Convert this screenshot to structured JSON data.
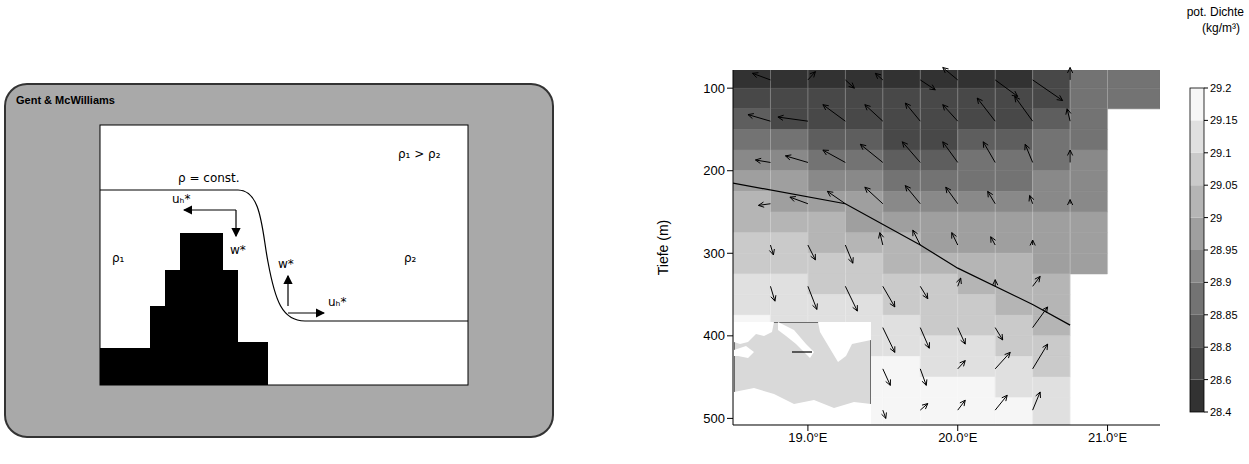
{
  "diagram": {
    "title": "Gent & McWilliams",
    "isopycnal_label": "ρ = const.",
    "density_relation": "ρ₁ > ρ₂",
    "rho_left": "ρ₁",
    "rho_right": "ρ₂",
    "u_label": "uₕ*",
    "w_label": "w*"
  },
  "chart_data": {
    "type": "contour",
    "y_label": "Tiefe (m)",
    "xlim": [
      18.5,
      21.35
    ],
    "xticks": [
      {
        "value": 19,
        "label": "19.0°E"
      },
      {
        "value": 20,
        "label": "20.0°E"
      },
      {
        "value": 21,
        "label": "21.0°E"
      }
    ],
    "ylim": [
      78,
      508
    ],
    "yticks": [
      100,
      200,
      300,
      400,
      500
    ],
    "grid": true,
    "colorbar_title": "pot. Dichte",
    "colorbar_units": "(kg/m³)",
    "colorbar_range": [
      28.4,
      29.2
    ],
    "colorbar_ticks": [
      28.4,
      28.6,
      28.8,
      28.85,
      28.9,
      28.95,
      29,
      29.05,
      29.1,
      29.15,
      29.2
    ],
    "x_edges": [
      18.5,
      18.75,
      19.0,
      19.25,
      19.5,
      19.75,
      20.0,
      20.25,
      20.5,
      20.75,
      21.0,
      21.35
    ],
    "depth_edges": [
      78,
      100,
      125,
      150,
      175,
      200,
      225,
      250,
      275,
      300,
      325,
      350,
      375,
      400,
      425,
      450,
      475,
      508
    ],
    "density": [
      [
        28.55,
        28.5,
        28.5,
        28.5,
        28.5,
        28.5,
        28.5,
        28.5,
        28.6,
        28.85,
        28.85
      ],
      [
        28.75,
        28.7,
        28.65,
        28.6,
        28.6,
        28.6,
        28.65,
        28.7,
        28.75,
        28.85,
        28.85
      ],
      [
        28.82,
        28.78,
        28.75,
        28.72,
        28.7,
        28.7,
        28.72,
        28.75,
        28.8,
        28.87,
        null
      ],
      [
        28.88,
        28.85,
        28.82,
        28.8,
        28.78,
        28.78,
        28.8,
        28.82,
        28.85,
        28.88,
        null
      ],
      [
        28.93,
        28.9,
        28.88,
        28.86,
        28.84,
        28.84,
        28.85,
        28.86,
        28.88,
        28.9,
        null
      ],
      [
        28.97,
        28.95,
        28.93,
        28.91,
        28.89,
        28.88,
        28.88,
        28.89,
        28.9,
        28.92,
        null
      ],
      [
        29.01,
        28.99,
        28.97,
        28.95,
        28.93,
        28.92,
        28.92,
        28.92,
        28.93,
        28.94,
        null
      ],
      [
        29.04,
        29.02,
        29.01,
        28.99,
        28.97,
        28.96,
        28.95,
        28.95,
        28.95,
        28.96,
        null
      ],
      [
        29.07,
        29.05,
        29.04,
        29.02,
        29.01,
        28.99,
        28.98,
        28.97,
        28.97,
        28.97,
        null
      ],
      [
        29.09,
        29.08,
        29.07,
        29.05,
        29.04,
        29.02,
        29.01,
        29.0,
        28.99,
        28.98,
        null
      ],
      [
        29.11,
        29.1,
        29.09,
        29.08,
        29.06,
        29.05,
        29.03,
        29.02,
        29.01,
        null,
        null
      ],
      [
        29.13,
        29.12,
        29.11,
        29.1,
        29.09,
        29.07,
        29.06,
        29.04,
        29.02,
        null,
        null
      ],
      [
        29.15,
        29.14,
        29.13,
        29.12,
        29.11,
        29.09,
        29.08,
        29.06,
        29.04,
        null,
        null
      ],
      [
        29.16,
        29.16,
        29.15,
        29.14,
        29.13,
        29.12,
        29.1,
        29.08,
        29.06,
        null,
        null
      ],
      [
        29.18,
        29.17,
        29.17,
        29.16,
        29.15,
        29.14,
        29.12,
        29.11,
        29.09,
        null,
        null
      ],
      [
        29.19,
        29.18,
        29.18,
        29.17,
        29.17,
        29.16,
        29.15,
        29.13,
        29.11,
        null,
        null
      ],
      [
        29.2,
        29.19,
        29.19,
        29.19,
        29.18,
        29.18,
        29.17,
        29.16,
        29.14,
        null,
        null
      ]
    ],
    "contour": {
      "x": [
        18.5,
        19.25,
        19.75,
        20.0,
        20.5,
        20.75
      ],
      "depth": [
        215,
        240,
        290,
        318,
        362,
        387
      ],
      "color": "#000000"
    },
    "arrows": [
      {
        "x": 18.75,
        "depth": 90,
        "dx": -0.12,
        "ddepth": -8
      },
      {
        "x": 19.0,
        "depth": 90,
        "dx": 0.05,
        "ddepth": -10
      },
      {
        "x": 19.25,
        "depth": 90,
        "dx": 0.06,
        "ddepth": 10
      },
      {
        "x": 19.5,
        "depth": 90,
        "dx": -0.05,
        "ddepth": -8
      },
      {
        "x": 19.75,
        "depth": 90,
        "dx": 0.1,
        "ddepth": 12
      },
      {
        "x": 20.0,
        "depth": 90,
        "dx": -0.1,
        "ddepth": -15
      },
      {
        "x": 20.25,
        "depth": 90,
        "dx": 0.15,
        "ddepth": 20
      },
      {
        "x": 20.5,
        "depth": 90,
        "dx": 0.2,
        "ddepth": 25
      },
      {
        "x": 20.75,
        "depth": 90,
        "dx": 0.0,
        "ddepth": -15
      },
      {
        "x": 18.75,
        "depth": 140,
        "dx": -0.15,
        "ddepth": -8
      },
      {
        "x": 19.0,
        "depth": 140,
        "dx": -0.2,
        "ddepth": -5
      },
      {
        "x": 19.25,
        "depth": 140,
        "dx": -0.15,
        "ddepth": -20
      },
      {
        "x": 19.5,
        "depth": 140,
        "dx": -0.12,
        "ddepth": -20
      },
      {
        "x": 19.75,
        "depth": 140,
        "dx": -0.1,
        "ddepth": -22
      },
      {
        "x": 20.0,
        "depth": 140,
        "dx": -0.1,
        "ddepth": -20
      },
      {
        "x": 20.25,
        "depth": 140,
        "dx": -0.12,
        "ddepth": -28
      },
      {
        "x": 20.5,
        "depth": 140,
        "dx": -0.12,
        "ddepth": -30
      },
      {
        "x": 20.75,
        "depth": 140,
        "dx": -0.02,
        "ddepth": -15
      },
      {
        "x": 18.75,
        "depth": 190,
        "dx": -0.1,
        "ddepth": -3
      },
      {
        "x": 19.0,
        "depth": 190,
        "dx": -0.15,
        "ddepth": -8
      },
      {
        "x": 19.25,
        "depth": 190,
        "dx": -0.15,
        "ddepth": -15
      },
      {
        "x": 19.5,
        "depth": 190,
        "dx": -0.15,
        "ddepth": -22
      },
      {
        "x": 19.75,
        "depth": 190,
        "dx": -0.12,
        "ddepth": -25
      },
      {
        "x": 20.0,
        "depth": 190,
        "dx": -0.1,
        "ddepth": -25
      },
      {
        "x": 20.25,
        "depth": 190,
        "dx": -0.08,
        "ddepth": -25
      },
      {
        "x": 20.5,
        "depth": 190,
        "dx": -0.05,
        "ddepth": -22
      },
      {
        "x": 20.75,
        "depth": 190,
        "dx": 0.0,
        "ddepth": -15
      },
      {
        "x": 18.75,
        "depth": 240,
        "dx": -0.08,
        "ddepth": 2
      },
      {
        "x": 19.0,
        "depth": 240,
        "dx": -0.12,
        "ddepth": -8
      },
      {
        "x": 19.25,
        "depth": 240,
        "dx": -0.12,
        "ddepth": -15
      },
      {
        "x": 19.5,
        "depth": 240,
        "dx": -0.12,
        "ddepth": -20
      },
      {
        "x": 19.75,
        "depth": 240,
        "dx": -0.1,
        "ddepth": -22
      },
      {
        "x": 20.0,
        "depth": 240,
        "dx": -0.08,
        "ddepth": -20
      },
      {
        "x": 20.25,
        "depth": 240,
        "dx": -0.05,
        "ddepth": -15
      },
      {
        "x": 20.5,
        "depth": 240,
        "dx": -0.02,
        "ddepth": -10
      },
      {
        "x": 20.75,
        "depth": 240,
        "dx": 0.0,
        "ddepth": -5
      },
      {
        "x": 18.75,
        "depth": 290,
        "dx": 0.02,
        "ddepth": 12
      },
      {
        "x": 19.0,
        "depth": 290,
        "dx": 0.05,
        "ddepth": 18
      },
      {
        "x": 19.25,
        "depth": 290,
        "dx": 0.05,
        "ddepth": 22
      },
      {
        "x": 19.5,
        "depth": 290,
        "dx": -0.02,
        "ddepth": -15
      },
      {
        "x": 19.75,
        "depth": 290,
        "dx": -0.05,
        "ddepth": -18
      },
      {
        "x": 20.0,
        "depth": 290,
        "dx": -0.04,
        "ddepth": -15
      },
      {
        "x": 20.25,
        "depth": 290,
        "dx": -0.03,
        "ddepth": -10
      },
      {
        "x": 20.5,
        "depth": 290,
        "dx": 0.0,
        "ddepth": -6
      },
      {
        "x": 18.75,
        "depth": 340,
        "dx": 0.03,
        "ddepth": 18
      },
      {
        "x": 19.0,
        "depth": 340,
        "dx": 0.06,
        "ddepth": 28
      },
      {
        "x": 19.25,
        "depth": 340,
        "dx": 0.08,
        "ddepth": 30
      },
      {
        "x": 19.5,
        "depth": 340,
        "dx": 0.08,
        "ddepth": 25
      },
      {
        "x": 19.75,
        "depth": 340,
        "dx": 0.05,
        "ddepth": 15
      },
      {
        "x": 20.0,
        "depth": 340,
        "dx": 0.02,
        "ddepth": -10
      },
      {
        "x": 20.25,
        "depth": 340,
        "dx": 0.0,
        "ddepth": -8
      },
      {
        "x": 20.5,
        "depth": 340,
        "dx": 0.05,
        "ddepth": -12
      },
      {
        "x": 19.5,
        "depth": 390,
        "dx": 0.08,
        "ddepth": 30
      },
      {
        "x": 19.75,
        "depth": 390,
        "dx": 0.06,
        "ddepth": 25
      },
      {
        "x": 20.0,
        "depth": 390,
        "dx": 0.05,
        "ddepth": 20
      },
      {
        "x": 20.25,
        "depth": 390,
        "dx": 0.05,
        "ddepth": 15
      },
      {
        "x": 20.5,
        "depth": 390,
        "dx": 0.1,
        "ddepth": -25
      },
      {
        "x": 19.5,
        "depth": 440,
        "dx": 0.05,
        "ddepth": 20
      },
      {
        "x": 19.75,
        "depth": 440,
        "dx": 0.04,
        "ddepth": 20
      },
      {
        "x": 20.0,
        "depth": 440,
        "dx": 0.05,
        "ddepth": -10
      },
      {
        "x": 20.25,
        "depth": 440,
        "dx": 0.1,
        "ddepth": -20
      },
      {
        "x": 20.5,
        "depth": 440,
        "dx": 0.1,
        "ddepth": -30
      },
      {
        "x": 19.5,
        "depth": 490,
        "dx": 0.02,
        "ddepth": 10
      },
      {
        "x": 19.75,
        "depth": 490,
        "dx": 0.05,
        "ddepth": -8
      },
      {
        "x": 20.0,
        "depth": 490,
        "dx": 0.05,
        "ddepth": -12
      },
      {
        "x": 20.25,
        "depth": 490,
        "dx": 0.08,
        "ddepth": -18
      },
      {
        "x": 20.5,
        "depth": 490,
        "dx": 0.05,
        "ddepth": -22
      }
    ]
  }
}
